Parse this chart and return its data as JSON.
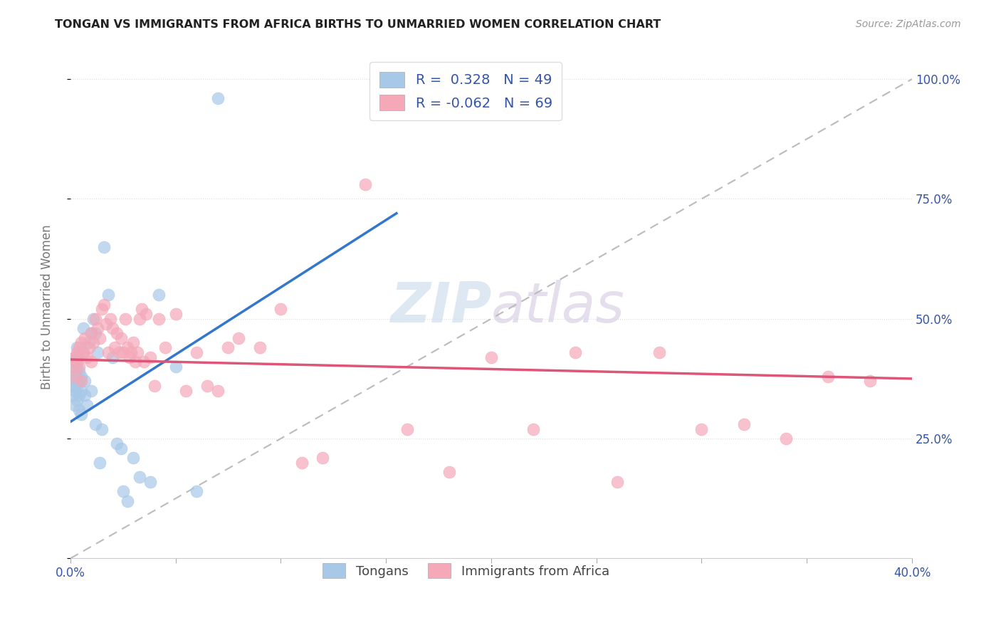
{
  "title": "TONGAN VS IMMIGRANTS FROM AFRICA BIRTHS TO UNMARRIED WOMEN CORRELATION CHART",
  "source": "Source: ZipAtlas.com",
  "ylabel": "Births to Unmarried Women",
  "xlim": [
    0.0,
    0.4
  ],
  "ylim": [
    0.0,
    1.05
  ],
  "xtick_positions": [
    0.0,
    0.05,
    0.1,
    0.15,
    0.2,
    0.25,
    0.3,
    0.35,
    0.4
  ],
  "xticklabels": [
    "0.0%",
    "",
    "",
    "",
    "",
    "",
    "",
    "",
    "40.0%"
  ],
  "ytick_positions": [
    0.0,
    0.25,
    0.5,
    0.75,
    1.0
  ],
  "yticklabels_right": [
    "",
    "25.0%",
    "50.0%",
    "75.0%",
    "100.0%"
  ],
  "tongan_color": "#a8c8e8",
  "africa_color": "#f4a8b8",
  "tongan_line_color": "#3377cc",
  "africa_line_color": "#dd5577",
  "dashed_line_color": "#bbbbbb",
  "legend_text_color": "#3355aa",
  "axis_label_color": "#3355aa",
  "ylabel_color": "#777777",
  "watermark_zip_color": "#c8daea",
  "watermark_atlas_color": "#d4c8e0",
  "R_tongan": 0.328,
  "N_tongan": 49,
  "R_africa": -0.062,
  "N_africa": 69,
  "tongan_x": [
    0.001,
    0.001,
    0.001,
    0.002,
    0.002,
    0.002,
    0.002,
    0.002,
    0.003,
    0.003,
    0.003,
    0.003,
    0.003,
    0.003,
    0.004,
    0.004,
    0.004,
    0.004,
    0.005,
    0.005,
    0.005,
    0.006,
    0.006,
    0.007,
    0.007,
    0.008,
    0.009,
    0.01,
    0.01,
    0.011,
    0.012,
    0.012,
    0.013,
    0.014,
    0.015,
    0.016,
    0.018,
    0.02,
    0.022,
    0.024,
    0.025,
    0.027,
    0.03,
    0.033,
    0.038,
    0.042,
    0.05,
    0.06,
    0.07
  ],
  "tongan_y": [
    0.34,
    0.36,
    0.38,
    0.32,
    0.35,
    0.37,
    0.4,
    0.42,
    0.33,
    0.36,
    0.38,
    0.4,
    0.42,
    0.44,
    0.31,
    0.34,
    0.37,
    0.39,
    0.3,
    0.35,
    0.38,
    0.43,
    0.48,
    0.34,
    0.37,
    0.32,
    0.45,
    0.47,
    0.35,
    0.5,
    0.47,
    0.28,
    0.43,
    0.2,
    0.27,
    0.65,
    0.55,
    0.42,
    0.24,
    0.23,
    0.14,
    0.12,
    0.21,
    0.17,
    0.16,
    0.55,
    0.4,
    0.14,
    0.96
  ],
  "africa_x": [
    0.001,
    0.002,
    0.002,
    0.003,
    0.003,
    0.004,
    0.004,
    0.005,
    0.005,
    0.006,
    0.007,
    0.008,
    0.009,
    0.01,
    0.01,
    0.011,
    0.012,
    0.013,
    0.014,
    0.015,
    0.016,
    0.017,
    0.018,
    0.019,
    0.02,
    0.021,
    0.022,
    0.023,
    0.024,
    0.025,
    0.026,
    0.027,
    0.028,
    0.029,
    0.03,
    0.031,
    0.032,
    0.033,
    0.034,
    0.035,
    0.036,
    0.038,
    0.04,
    0.042,
    0.045,
    0.05,
    0.055,
    0.06,
    0.065,
    0.07,
    0.075,
    0.08,
    0.09,
    0.1,
    0.11,
    0.12,
    0.14,
    0.16,
    0.18,
    0.2,
    0.22,
    0.24,
    0.26,
    0.28,
    0.3,
    0.32,
    0.34,
    0.36,
    0.38
  ],
  "africa_y": [
    0.4,
    0.38,
    0.42,
    0.41,
    0.43,
    0.4,
    0.44,
    0.37,
    0.45,
    0.43,
    0.46,
    0.42,
    0.44,
    0.41,
    0.47,
    0.45,
    0.5,
    0.48,
    0.46,
    0.52,
    0.53,
    0.49,
    0.43,
    0.5,
    0.48,
    0.44,
    0.47,
    0.43,
    0.46,
    0.43,
    0.5,
    0.44,
    0.42,
    0.43,
    0.45,
    0.41,
    0.43,
    0.5,
    0.52,
    0.41,
    0.51,
    0.42,
    0.36,
    0.5,
    0.44,
    0.51,
    0.35,
    0.43,
    0.36,
    0.35,
    0.44,
    0.46,
    0.44,
    0.52,
    0.2,
    0.21,
    0.78,
    0.27,
    0.18,
    0.42,
    0.27,
    0.43,
    0.16,
    0.43,
    0.27,
    0.28,
    0.25,
    0.38,
    0.37
  ],
  "tongan_line_x": [
    0.0,
    0.155
  ],
  "tongan_line_y": [
    0.285,
    0.72
  ],
  "africa_line_x": [
    0.0,
    0.4
  ],
  "africa_line_y": [
    0.415,
    0.375
  ]
}
